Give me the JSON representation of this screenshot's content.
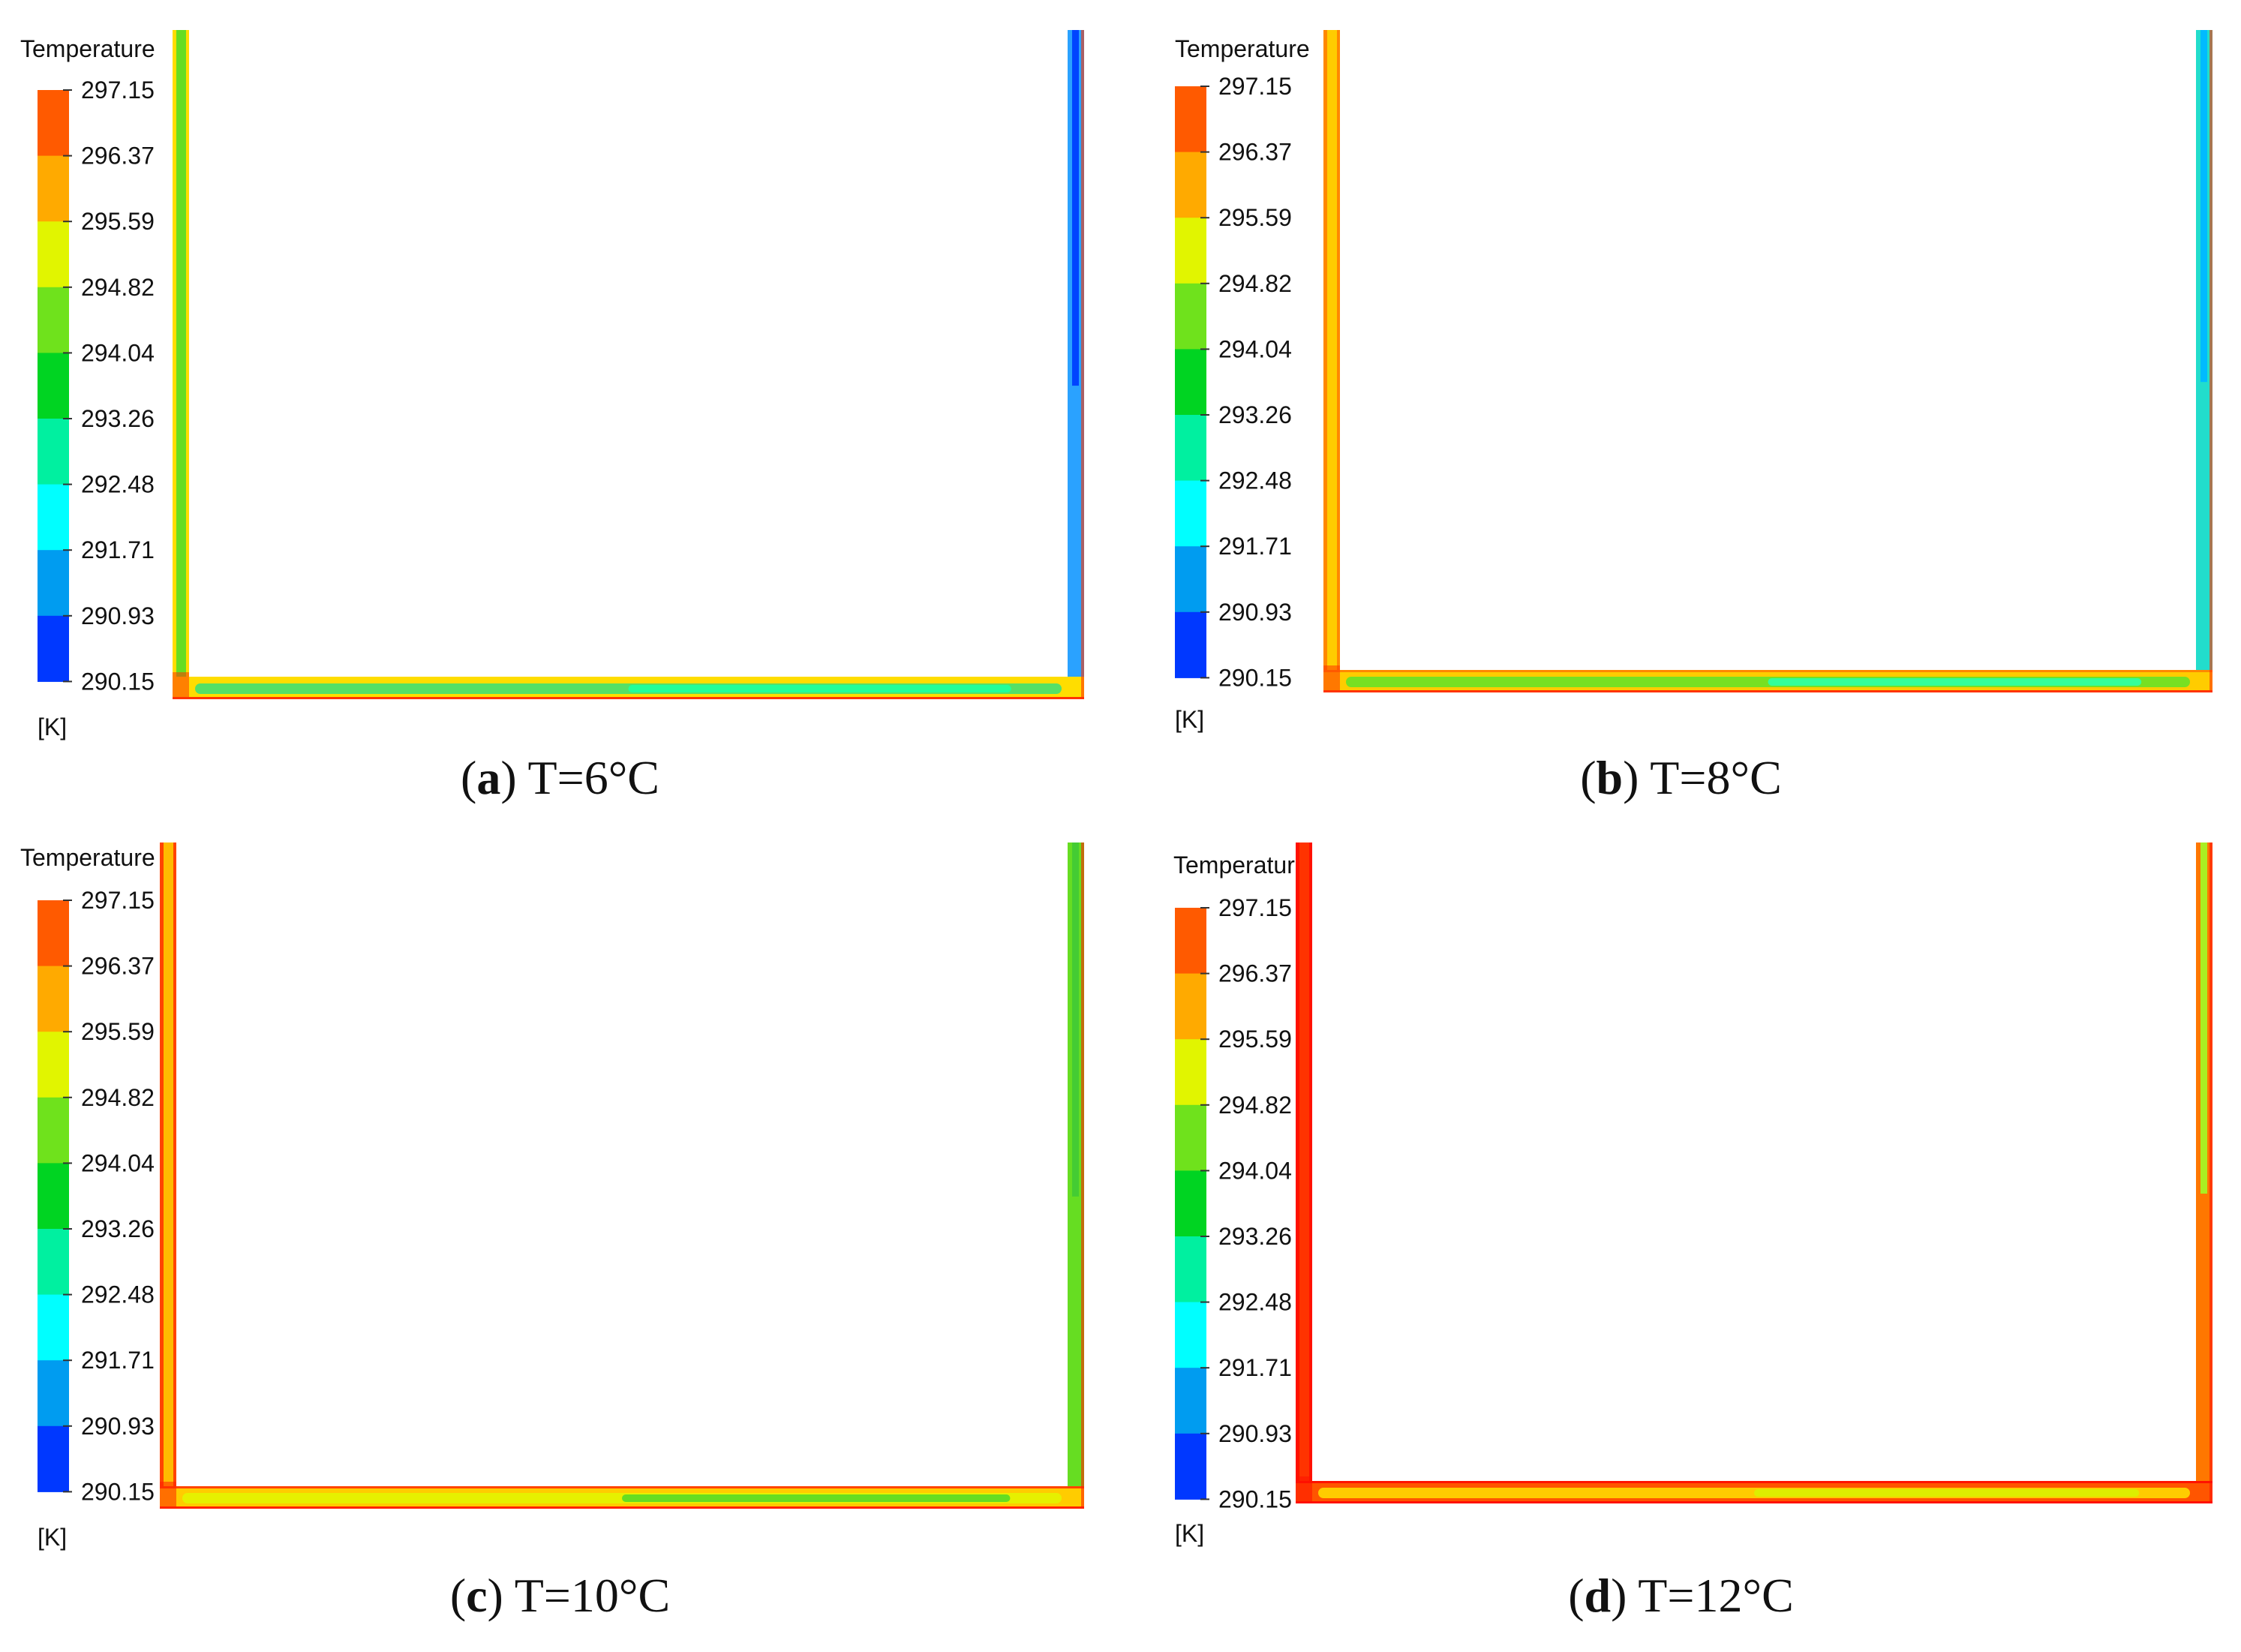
{
  "colorbar": {
    "title": "Temperature",
    "unit": "[K]",
    "tick_labels": [
      "297.15",
      "296.37",
      "295.59",
      "294.82",
      "294.04",
      "293.26",
      "292.48",
      "291.71",
      "290.93",
      "290.15"
    ],
    "band_colors": [
      "#ff5a00",
      "#ffaa00",
      "#e1f500",
      "#6fe21c",
      "#00d422",
      "#00f0a0",
      "#00ffff",
      "#009cf0",
      "#0038ff"
    ]
  },
  "panels": [
    {
      "letter": "a",
      "caption_text": "T=6°C",
      "left_wall": "#66dd22",
      "left_edge": "#ffdd00",
      "right_wall": "#2aa2ff",
      "right_core": "#0044ff",
      "bottom_outer": "#ffdd00",
      "bottom_core": "#55e066",
      "bottom_tail": "#22ff99",
      "corner": "#ff3300"
    },
    {
      "letter": "b",
      "caption_text": "T=8°C",
      "left_wall": "#ffcc00",
      "left_edge": "#ff8800",
      "right_wall": "#22ddcc",
      "right_core": "#00bbff",
      "bottom_outer": "#ffcc00",
      "bottom_core": "#77e022",
      "bottom_tail": "#33ff99",
      "corner": "#ff3300"
    },
    {
      "letter": "c",
      "caption_text": "T=10°C",
      "left_wall": "#ffbb00",
      "left_edge": "#ff4400",
      "right_wall": "#66dd22",
      "right_core": "#44cc33",
      "bottom_outer": "#ffcc00",
      "bottom_core": "#e6f000",
      "bottom_tail": "#66dd22",
      "corner": "#ff2200"
    },
    {
      "letter": "d",
      "caption_text": "T=12°C",
      "left_wall": "#ff3300",
      "left_edge": "#ff1100",
      "right_wall": "#ff7700",
      "right_core": "#aaee22",
      "bottom_outer": "#ff5500",
      "bottom_core": "#ffcc00",
      "bottom_tail": "#ddee00",
      "corner": "#ff1100"
    }
  ]
}
